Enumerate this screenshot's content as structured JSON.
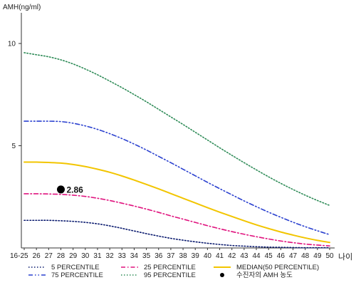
{
  "chart_data": {
    "type": "line",
    "ylabel": "AMH(ng/ml)",
    "xlabel": "나이",
    "x": [
      "16-25",
      "26",
      "27",
      "28",
      "29",
      "30",
      "31",
      "32",
      "33",
      "34",
      "35",
      "36",
      "37",
      "38",
      "39",
      "40",
      "41",
      "42",
      "43",
      "44",
      "45",
      "46",
      "47",
      "48",
      "49",
      "50"
    ],
    "ylim": [
      0,
      11.5
    ],
    "yticks": [
      5,
      10
    ],
    "grid": false,
    "legend_position": "bottom",
    "series": [
      {
        "name": "5 PERCENTILE",
        "color": "#0a1a6e",
        "dash": "dotted",
        "values": [
          1.35,
          1.35,
          1.35,
          1.33,
          1.3,
          1.25,
          1.18,
          1.08,
          0.96,
          0.83,
          0.7,
          0.58,
          0.47,
          0.38,
          0.3,
          0.23,
          0.17,
          0.12,
          0.09,
          0.06,
          0.04,
          0.03,
          0.02,
          0.01,
          0.01,
          0.01
        ]
      },
      {
        "name": "25 PERCENTILE",
        "color": "#e0137e",
        "dash": "dashdot",
        "values": [
          2.65,
          2.65,
          2.64,
          2.62,
          2.58,
          2.52,
          2.43,
          2.32,
          2.19,
          2.05,
          1.9,
          1.74,
          1.57,
          1.41,
          1.25,
          1.09,
          0.94,
          0.8,
          0.67,
          0.55,
          0.44,
          0.34,
          0.26,
          0.19,
          0.14,
          0.1
        ]
      },
      {
        "name": "MEDIAN(50 PERCENTILE)",
        "color": "#f2c500",
        "dash": "solid",
        "values": [
          4.2,
          4.2,
          4.18,
          4.15,
          4.08,
          3.98,
          3.85,
          3.7,
          3.52,
          3.32,
          3.11,
          2.89,
          2.66,
          2.43,
          2.2,
          1.97,
          1.75,
          1.54,
          1.33,
          1.13,
          0.95,
          0.78,
          0.63,
          0.49,
          0.37,
          0.27
        ]
      },
      {
        "name": "75 PERCENTILE",
        "color": "#2a40cf",
        "dash": "dashdotdot",
        "values": [
          6.2,
          6.2,
          6.2,
          6.18,
          6.1,
          5.97,
          5.8,
          5.59,
          5.35,
          5.08,
          4.79,
          4.48,
          4.17,
          3.85,
          3.53,
          3.21,
          2.9,
          2.6,
          2.3,
          2.02,
          1.75,
          1.5,
          1.26,
          1.04,
          0.84,
          0.65
        ]
      },
      {
        "name": "95 PERCENTILE",
        "color": "#2e8b57",
        "dash": "dotted",
        "values": [
          9.55,
          9.45,
          9.35,
          9.2,
          9.0,
          8.75,
          8.47,
          8.16,
          7.84,
          7.5,
          7.15,
          6.78,
          6.41,
          6.04,
          5.66,
          5.28,
          4.9,
          4.53,
          4.17,
          3.82,
          3.48,
          3.16,
          2.86,
          2.58,
          2.32,
          2.08
        ]
      }
    ],
    "points": [
      {
        "name": "수진자의 AMH 농도",
        "x": "28",
        "y": 2.86,
        "label": "2.86",
        "color": "#000000"
      }
    ]
  }
}
